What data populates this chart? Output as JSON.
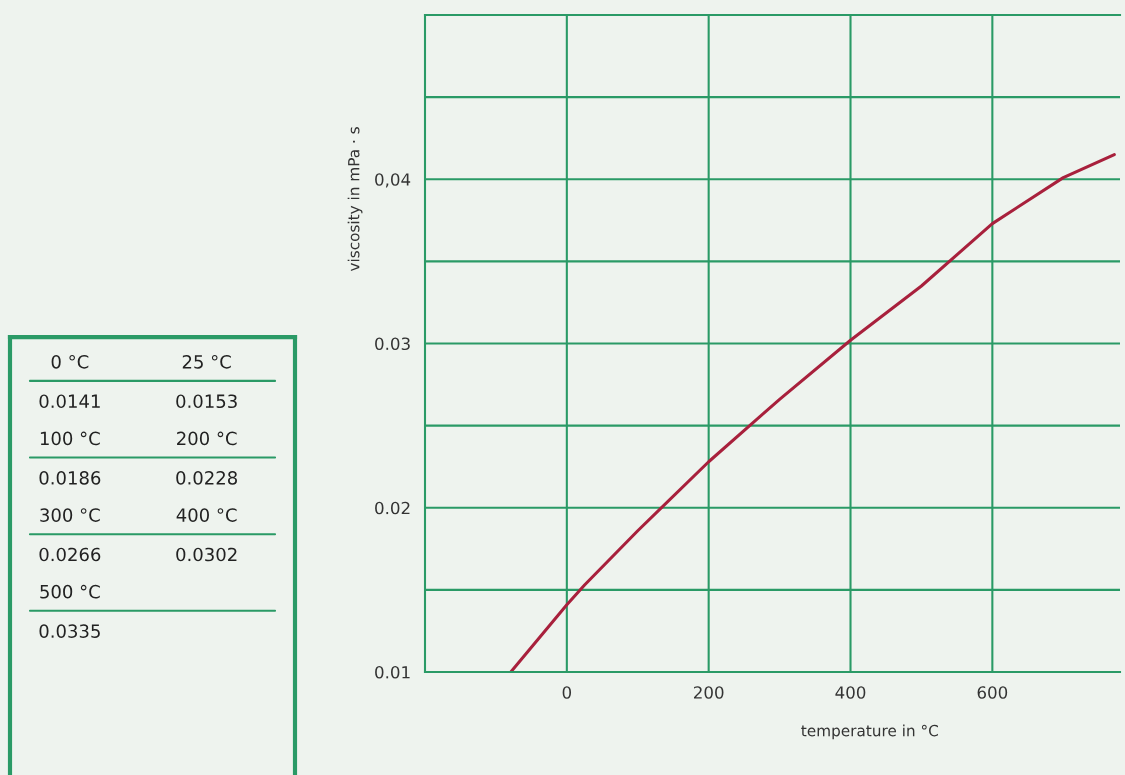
{
  "chart_data": [
    {
      "type": "other",
      "annotations": [
        "0 °C",
        "25 °C",
        "0.0141",
        "0.0153",
        "100 °C",
        "200 °C",
        "0.0186",
        "0.0228",
        "300 °C",
        "400 °C",
        "0.0266",
        "0.0302",
        "500 °C",
        "0.0335"
      ]
    },
    {
      "type": "line",
      "xlabel": "temperature in °C",
      "ylabel": "viscosity in mPa · s",
      "x": [
        -79,
        0,
        25,
        100,
        200,
        300,
        400,
        500,
        600,
        700,
        772
      ],
      "series": [
        {
          "color": "#a8203c",
          "values": [
            0.01,
            0.0141,
            0.0153,
            0.0186,
            0.0228,
            0.0266,
            0.0302,
            0.0335,
            0.0373,
            0.0401,
            0.0415
          ]
        }
      ],
      "xlim": [
        -200,
        780
      ],
      "xticks": [
        0,
        200,
        400,
        600
      ],
      "ylim": [
        0.01,
        0.05
      ],
      "yticks": [
        0.01,
        {
          "value": 0.015,
          "label": null
        },
        0.02,
        {
          "value": 0.025,
          "label": null
        },
        0.03,
        {
          "value": 0.035,
          "label": null
        },
        {
          "value": 0.04,
          "label": "0,04"
        },
        {
          "value": 0.045,
          "label": null
        }
      ],
      "grid": true,
      "marker": "none",
      "line_style": "solid"
    }
  ]
}
